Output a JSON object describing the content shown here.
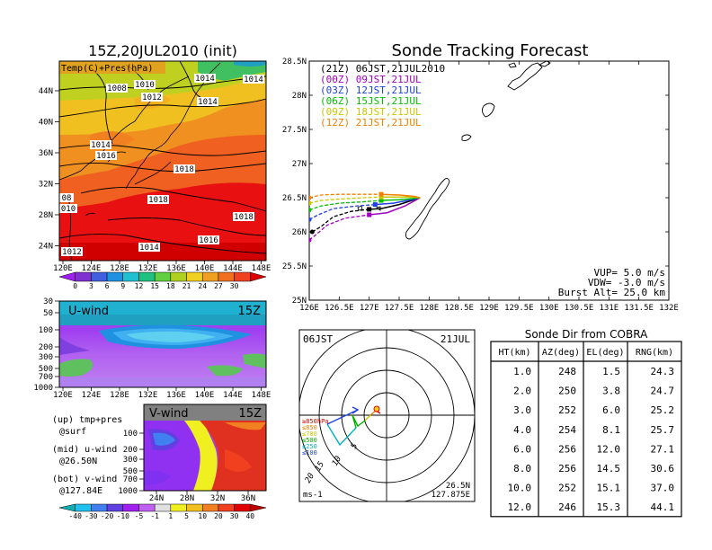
{
  "map_panel": {
    "title": "15Z,20JUL2010 (init)",
    "inset_label": "Temp(C)+Pres(hPa)",
    "lat_labels": [
      "44N",
      "40N",
      "36N",
      "32N",
      "28N",
      "24N"
    ],
    "lon_labels": [
      "120E",
      "124E",
      "128E",
      "132E",
      "136E",
      "140E",
      "144E",
      "148E"
    ],
    "isobar_labels": [
      "1008",
      "1010",
      "1012",
      "1014",
      "1014",
      "1014",
      "1014",
      "1016",
      "1018",
      "1018",
      "1018",
      "1016",
      "1014",
      "1012",
      "08",
      "010"
    ],
    "colorbar_labels": [
      "0",
      "3",
      "6",
      "9",
      "12",
      "15",
      "18",
      "21",
      "24",
      "27",
      "30"
    ],
    "colorbar_colors": [
      "#a020f0",
      "#8030d0",
      "#4060e0",
      "#2090e0",
      "#20c0d0",
      "#20c080",
      "#60d040",
      "#b0d020",
      "#f0d020",
      "#f0a020",
      "#f07020",
      "#f04020",
      "#e00000"
    ]
  },
  "uwind_panel": {
    "title": "U-wind",
    "time": "15Z",
    "p_labels": [
      "30",
      "50",
      "100",
      "200",
      "300",
      "500",
      "700",
      "1000"
    ],
    "lon_labels": [
      "120E",
      "124E",
      "128E",
      "132E",
      "136E",
      "140E",
      "144E",
      "148E"
    ]
  },
  "vwind_panel": {
    "title": "V-wind",
    "time": "15Z",
    "p_labels": [
      "100",
      "200",
      "300",
      "500",
      "700",
      "1000"
    ],
    "lat_labels": [
      "24N",
      "28N",
      "32N",
      "36N"
    ],
    "colorbar_labels": [
      "-40",
      "-30",
      "-20",
      "-10",
      "-5",
      "-1",
      "1",
      "5",
      "10",
      "20",
      "30",
      "40"
    ],
    "colorbar_colors": [
      "#10b0b0",
      "#20c0f0",
      "#4080f0",
      "#6040e0",
      "#a020f0",
      "#c060f0",
      "#e0e0e0",
      "#f0f020",
      "#f0c020",
      "#f08020",
      "#f04020",
      "#e00000",
      "#c00000"
    ]
  },
  "legend_text": {
    "line1": "(up) tmp+pres",
    "line2": "@surf",
    "line3": "(mid) u-wind",
    "line4": "@26.50N",
    "line5": "(bot) v-wind",
    "line6": "@127.84E"
  },
  "track_panel": {
    "title": "Sonde Tracking Forecast",
    "lat_labels": [
      "28.5N",
      "28N",
      "27.5N",
      "27N",
      "26.5N",
      "26N",
      "25.5N",
      "25N"
    ],
    "lon_labels": [
      "126E",
      "126.5E",
      "127E",
      "127.5E",
      "128E",
      "128.5E",
      "129E",
      "129.5E",
      "130E",
      "130.5E",
      "131E",
      "131.5E",
      "132E"
    ],
    "legend": [
      {
        "text": "(21Z) 06JST,21JUL2010",
        "color": "#000000"
      },
      {
        "text": "(00Z) 09JST,21JUL",
        "color": "#a000c0"
      },
      {
        "text": "(03Z) 12JST,21JUL",
        "color": "#2040e0"
      },
      {
        "text": "(06Z) 15JST,21JUL",
        "color": "#00c000"
      },
      {
        "text": "(09Z) 18JST,21JUL",
        "color": "#c8c800"
      },
      {
        "text": "(12Z) 21JST,21JUL",
        "color": "#f08000"
      }
    ],
    "params": {
      "vup": "VUP= 5.0 m/s",
      "vdw": "VDW= -3.0 m/s",
      "burst": "Burst Alt= 25.0 km"
    }
  },
  "polar_panel": {
    "time_label": "06JST",
    "date_label": "21JUL",
    "unit_label": "ms-1",
    "lat_label": "26.5N",
    "lon_label": "127.875E",
    "level_legend": [
      {
        "text": "≥850hPa",
        "color": "#e00000"
      },
      {
        "text": "≤850",
        "color": "#f08000"
      },
      {
        "text": "≤700",
        "color": "#c8c800"
      },
      {
        "text": "≤500",
        "color": "#00b000"
      },
      {
        "text": "≤250",
        "color": "#00b0c0"
      },
      {
        "text": "≤100",
        "color": "#2040e0"
      }
    ],
    "ring_labels": [
      "5",
      "10",
      "15",
      "20"
    ]
  },
  "sonde_table": {
    "title": "Sonde Dir from COBRA",
    "headers": [
      "HT(km)",
      "AZ(deg)",
      "EL(deg)",
      "RNG(km)"
    ],
    "rows": [
      [
        "1.0",
        "248",
        "1.5",
        "24.3"
      ],
      [
        "2.0",
        "250",
        "3.8",
        "24.7"
      ],
      [
        "3.0",
        "252",
        "6.0",
        "25.2"
      ],
      [
        "4.0",
        "254",
        "8.1",
        "25.7"
      ],
      [
        "6.0",
        "256",
        "12.0",
        "27.1"
      ],
      [
        "8.0",
        "256",
        "14.5",
        "30.6"
      ],
      [
        "10.0",
        "252",
        "15.1",
        "37.0"
      ],
      [
        "12.0",
        "246",
        "15.3",
        "44.1"
      ]
    ]
  },
  "chart_data": [
    {
      "type": "line",
      "title": "Sonde Tracking Forecast",
      "xlim": [
        126,
        132
      ],
      "ylim": [
        25,
        28.5
      ],
      "series": [
        {
          "name": "(21Z) 06JST,21JUL2010",
          "x": [
            126.05,
            126.2,
            126.4,
            126.7,
            127.0,
            127.2,
            127.5,
            127.85
          ],
          "y": [
            26.0,
            26.08,
            26.22,
            26.3,
            26.33,
            26.34,
            26.4,
            26.5
          ]
        },
        {
          "name": "(00Z) 09JST,21JUL",
          "x": [
            126.0,
            126.1,
            126.3,
            126.6,
            127.0,
            127.3,
            127.6,
            127.85
          ],
          "y": [
            25.88,
            25.95,
            26.1,
            26.2,
            26.25,
            26.28,
            26.38,
            26.5
          ]
        },
        {
          "name": "(03Z) 12JST,21JUL",
          "x": [
            126.0,
            126.15,
            126.4,
            126.8,
            127.1,
            127.4,
            127.7,
            127.85
          ],
          "y": [
            26.18,
            26.25,
            26.34,
            26.38,
            26.4,
            26.42,
            26.47,
            26.5
          ]
        },
        {
          "name": "(06Z) 15JST,21JUL",
          "x": [
            126.0,
            126.2,
            126.5,
            126.9,
            127.2,
            127.5,
            127.75,
            127.85
          ],
          "y": [
            26.32,
            26.38,
            26.42,
            26.44,
            26.46,
            26.47,
            26.49,
            26.5
          ]
        },
        {
          "name": "(09Z) 18JST,21JUL",
          "x": [
            126.0,
            126.2,
            126.5,
            126.9,
            127.2,
            127.5,
            127.75,
            127.85
          ],
          "y": [
            26.42,
            26.46,
            26.48,
            26.5,
            26.51,
            26.51,
            26.51,
            26.5
          ]
        },
        {
          "name": "(12Z) 21JST,21JUL",
          "x": [
            126.0,
            126.2,
            126.5,
            126.9,
            127.2,
            127.5,
            127.75,
            127.85
          ],
          "y": [
            26.5,
            26.54,
            26.55,
            26.55,
            26.55,
            26.54,
            26.52,
            26.5
          ]
        }
      ]
    },
    {
      "type": "table",
      "title": "Sonde Dir from COBRA",
      "columns": [
        "HT(km)",
        "AZ(deg)",
        "EL(deg)",
        "RNG(km)"
      ],
      "rows": [
        [
          1.0,
          248,
          1.5,
          24.3
        ],
        [
          2.0,
          250,
          3.8,
          24.7
        ],
        [
          3.0,
          252,
          6.0,
          25.2
        ],
        [
          4.0,
          254,
          8.1,
          25.7
        ],
        [
          6.0,
          256,
          12.0,
          27.1
        ],
        [
          8.0,
          256,
          14.5,
          30.6
        ],
        [
          10.0,
          252,
          15.1,
          37.0
        ],
        [
          12.0,
          246,
          15.3,
          44.1
        ]
      ]
    }
  ]
}
